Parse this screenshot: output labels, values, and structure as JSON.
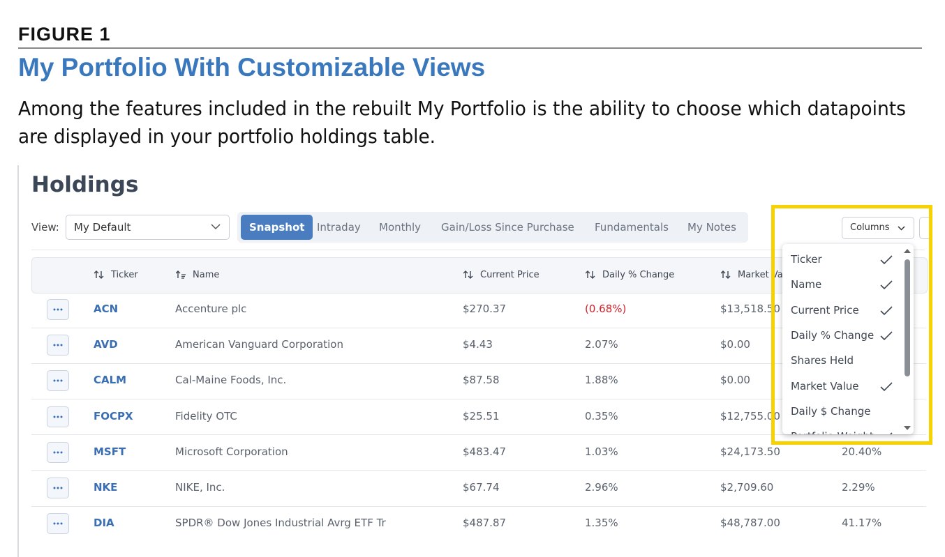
{
  "figure": {
    "label": "FIGURE 1",
    "title": "My Portfolio With Customizable Views",
    "caption_lines": [
      "Among the features included in the rebuilt My Portfolio is the ability to choose which datapoints",
      "are displayed in your portfolio holdings table."
    ]
  },
  "holdings": {
    "title": "Holdings",
    "view_label": "View:",
    "view_select": "My Default",
    "tabs": [
      "Snapshot",
      "Intraday",
      "Monthly",
      "Gain/Loss Since Purchase",
      "Fundamentals",
      "My Notes"
    ],
    "active_tab": 0,
    "columns_button": "Columns",
    "table": {
      "headers": [
        "Ticker",
        "Name",
        "Current Price",
        "Daily % Change",
        "Market Value"
      ],
      "rows": [
        [
          "ACN",
          "Accenture plc",
          "$270.37",
          "(0.68%)",
          "$13,518.50"
        ],
        [
          "AVD",
          "American Vanguard Corporation",
          "$4.43",
          "2.07%",
          "$0.00"
        ],
        [
          "CALM",
          "Cal-Maine Foods, Inc.",
          "$87.58",
          "1.88%",
          "$0.00"
        ],
        [
          "FOCPX",
          "Fidelity OTC",
          "$25.51",
          "0.35%",
          "$12,755.00"
        ],
        [
          "MSFT",
          "Microsoft Corporation",
          "$483.47",
          "1.03%",
          "$24,173.50",
          "20.40%"
        ],
        [
          "NKE",
          "NIKE, Inc.",
          "$67.74",
          "2.96%",
          "$2,709.60",
          "2.29%"
        ],
        [
          "DIA",
          "SPDR® Dow Jones Industrial Avrg ETF Tr",
          "$487.87",
          "1.35%",
          "$48,787.00",
          "41.17%"
        ]
      ]
    },
    "columns_menu": [
      {
        "label": "Ticker",
        "checked": true
      },
      {
        "label": "Name",
        "checked": true
      },
      {
        "label": "Current Price",
        "checked": true
      },
      {
        "label": "Daily % Change",
        "checked": true
      },
      {
        "label": "Shares Held",
        "checked": false
      },
      {
        "label": "Market Value",
        "checked": true
      },
      {
        "label": "Daily $ Change",
        "checked": false
      },
      {
        "label": "Portfolio Weight",
        "checked": true
      }
    ]
  }
}
